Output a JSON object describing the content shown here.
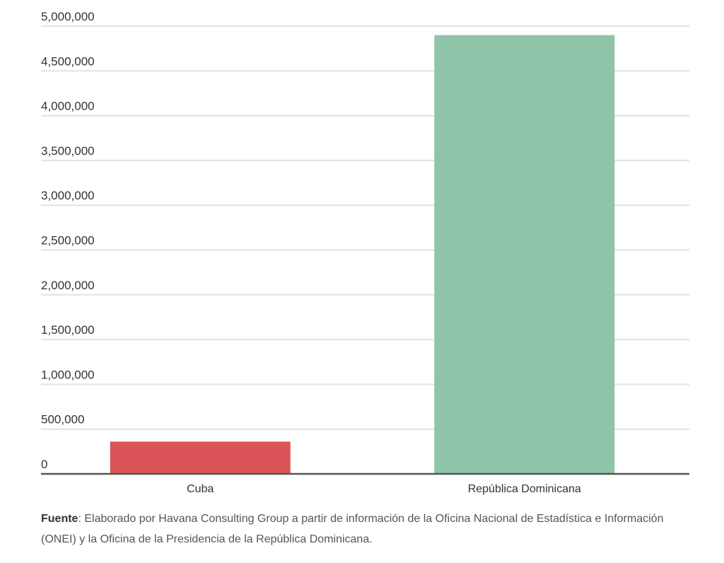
{
  "chart_data": {
    "type": "bar",
    "categories": [
      "Cuba",
      "República Dominicana"
    ],
    "values": [
      360000,
      4900000
    ],
    "colors": [
      "#db5356",
      "#8fc4a8"
    ],
    "ylim": [
      0,
      5000000
    ],
    "yticks": [
      0,
      500000,
      1000000,
      1500000,
      2000000,
      2500000,
      3000000,
      3500000,
      4000000,
      4500000,
      5000000
    ],
    "ytick_labels": [
      "0",
      "500,000",
      "1,000,000",
      "1,500,000",
      "2,000,000",
      "2,500,000",
      "3,000,000",
      "3,500,000",
      "4,000,000",
      "4,500,000",
      "5,000,000"
    ],
    "grid": true,
    "title": "",
    "xlabel": "",
    "ylabel": ""
  },
  "source": {
    "label": "Fuente",
    "text": ": Elaborado por Havana Consulting Group a partir de información de la Oficina Nacional de Estadística e Información (ONEI) y la Oficina de la Presidencia de la República Dominicana."
  }
}
